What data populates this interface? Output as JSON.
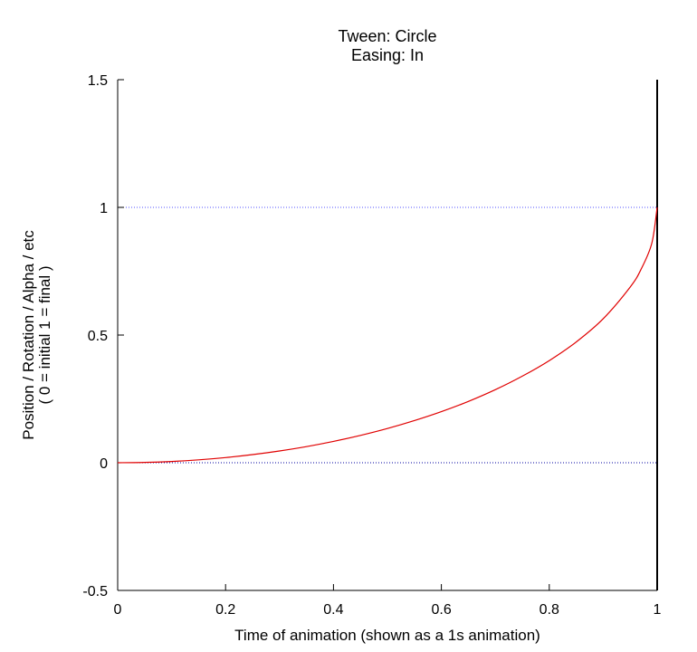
{
  "chart_data": {
    "type": "line",
    "title": "Tween: Circle",
    "subtitle": "Easing: In",
    "xlabel": "Time of animation (shown as a 1s animation)",
    "ylabel": "Position / Rotation / Alpha / etc",
    "ylabel_sub": "( 0 = initial   1 = final )",
    "xlim": [
      0,
      1
    ],
    "ylim": [
      -0.5,
      1.5
    ],
    "x_ticks": [
      0,
      0.2,
      0.4,
      0.6,
      0.8,
      1
    ],
    "x_tick_labels": [
      "0",
      "0.2",
      "0.4",
      "0.6",
      "0.8",
      "1"
    ],
    "y_ticks": [
      -0.5,
      0,
      0.5,
      1,
      1.5
    ],
    "y_tick_labels": [
      "-0.5",
      "0",
      "0.5",
      "1",
      "1.5"
    ],
    "reference_lines": [
      {
        "y": 0,
        "color": "#0000a0",
        "style": "dotted"
      },
      {
        "y": 1,
        "color": "#5050ff",
        "style": "dotted"
      }
    ],
    "vertical_line": {
      "x": 1,
      "color": "#000000"
    },
    "series": [
      {
        "color": "#e00000",
        "x": [
          0,
          0.05,
          0.1,
          0.15,
          0.2,
          0.25,
          0.3,
          0.35,
          0.4,
          0.45,
          0.5,
          0.55,
          0.6,
          0.65,
          0.7,
          0.75,
          0.8,
          0.85,
          0.9,
          0.95,
          0.97,
          0.99,
          1
        ],
        "y": [
          0,
          0.0013,
          0.005,
          0.0113,
          0.0202,
          0.0318,
          0.0461,
          0.0632,
          0.0835,
          0.107,
          0.134,
          0.165,
          0.2,
          0.24,
          0.286,
          0.339,
          0.4,
          0.473,
          0.564,
          0.688,
          0.757,
          0.859,
          1
        ]
      }
    ],
    "grid": false,
    "legend": "none"
  }
}
